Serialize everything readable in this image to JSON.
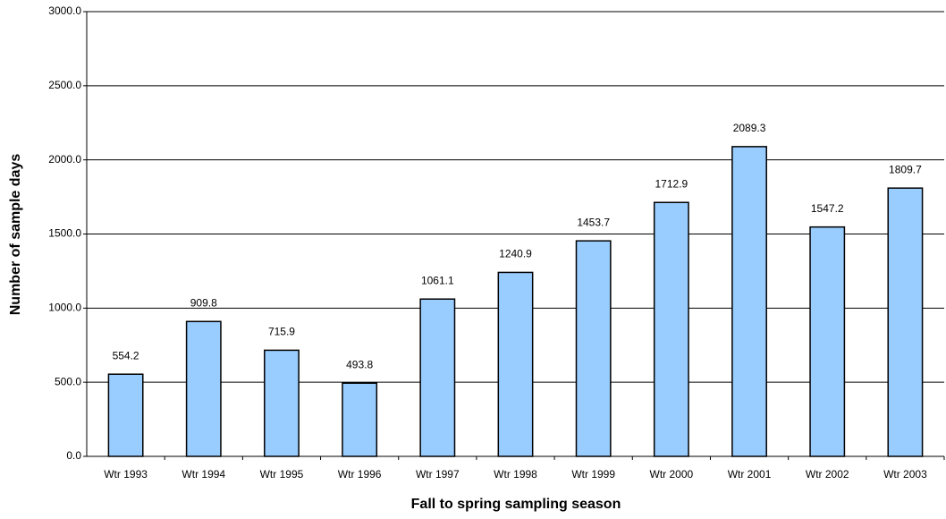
{
  "chart_data": {
    "type": "bar",
    "x_label": "Fall to spring sampling season",
    "y_label": "Number of sample days",
    "categories": [
      "Wtr 1993",
      "Wtr 1994",
      "Wtr 1995",
      "Wtr 1996",
      "Wtr 1997",
      "Wtr 1998",
      "Wtr 1999",
      "Wtr 2000",
      "Wtr 2001",
      "Wtr 2002",
      "Wtr 2003"
    ],
    "values": [
      554.2,
      909.8,
      715.9,
      493.8,
      1061.1,
      1240.9,
      1453.7,
      1712.9,
      2089.3,
      1547.2,
      1809.7
    ],
    "color": "#99ccff",
    "ylim": [
      0,
      3000
    ],
    "yticks": [
      {
        "value": 0,
        "label": "0.0"
      },
      {
        "value": 500,
        "label": "500.0"
      },
      {
        "value": 1000,
        "label": "1000.0"
      },
      {
        "value": 1500,
        "label": "1500.0"
      },
      {
        "value": 2000,
        "label": "2000.0"
      },
      {
        "value": 2500,
        "label": "2500.0"
      },
      {
        "value": 3000,
        "label": "3000.0"
      }
    ],
    "grid": true
  }
}
